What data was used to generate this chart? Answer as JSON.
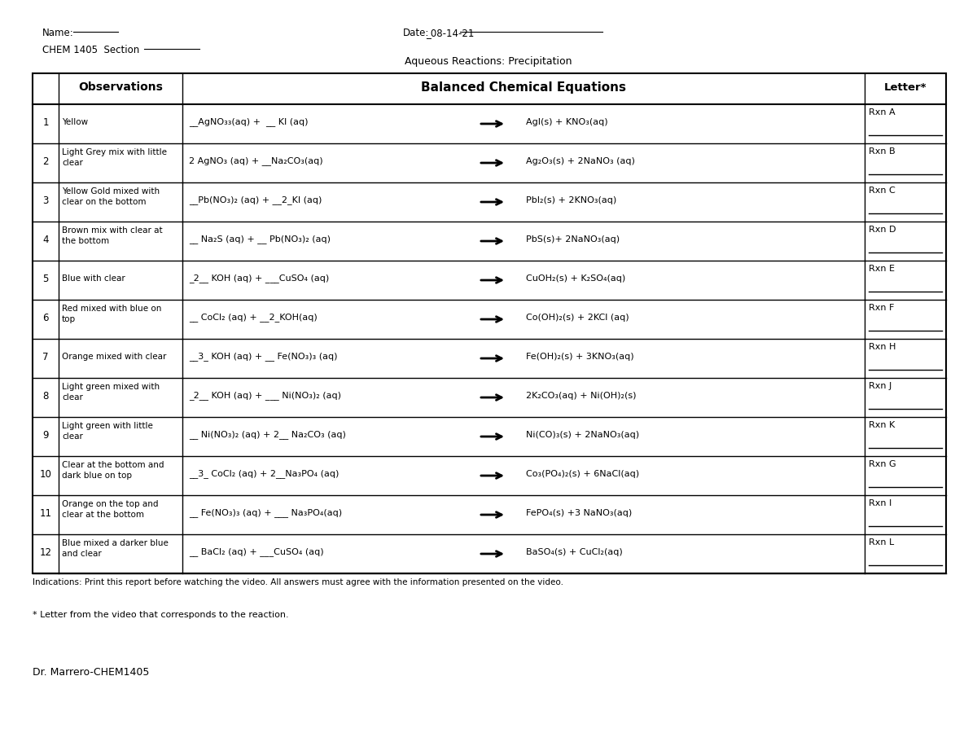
{
  "title": "Aqueous Reactions: Precipitation",
  "name_text": "Name:",
  "date_text": "Date: _08-14-21",
  "section_text": "CHEM 1405  Section",
  "header_obs": "Observations",
  "header_eq": "Balanced Chemical Equations",
  "header_letter": "Letter*",
  "obs_texts": [
    [
      "Yellow"
    ],
    [
      "Light Grey mix with little",
      "clear"
    ],
    [
      "Yellow Gold mixed with",
      "clear on the bottom"
    ],
    [
      "Brown mix with clear at",
      "the bottom"
    ],
    [
      "Blue with clear"
    ],
    [
      "Red mixed with blue on",
      "top"
    ],
    [
      "Orange mixed with clear"
    ],
    [
      "Light green mixed with",
      "clear"
    ],
    [
      "Light green with little",
      "clear"
    ],
    [
      "Clear at the bottom and",
      "dark blue on top"
    ],
    [
      "Orange on the top and",
      "clear at the bottom"
    ],
    [
      "Blue mixed a darker blue",
      "and clear"
    ]
  ],
  "eq_reactants": [
    "__AgNO₃₃(aq) +  __ KI (aq)",
    "2 AgNO₃ (aq) + __Na₂CO₃(aq)",
    "__Pb(NO₃)₂ (aq) + __2_KI (aq)",
    "__ Na₂S (aq) + __ Pb(NO₃)₂ (aq)",
    "_2__ KOH (aq) + ___CuSO₄ (aq)",
    "__ CoCl₂ (aq) + __2_KOH(aq)",
    "__3_ KOH (aq) + __ Fe(NO₃)₃ (aq)",
    "_2__ KOH (aq) + ___ Ni(NO₃)₂ (aq)",
    "__ Ni(NO₃)₂ (aq) + 2__ Na₂CO₃ (aq)",
    "__3_ CoCl₂ (aq) + 2__Na₃PO₄ (aq)",
    "__ Fe(NO₃)₃ (aq) + ___ Na₃PO₄(aq)",
    "__ BaCl₂ (aq) + ___CuSO₄ (aq)"
  ],
  "eq_products": [
    "AgI(s) + KNO₃(aq)",
    "Ag₂O₃(s) + 2NaNO₃ (aq)",
    "PbI₂(s) + 2KNO₃(aq)",
    "PbS(s)+ 2NaNO₃(aq)",
    "CuOH₂(s) + K₂SO₄(aq)",
    "Co(OH)₂(s) + 2KCl (aq)",
    "Fe(OH)₂(s) + 3KNO₃(aq)",
    "2K₂CO₃(aq) + Ni(OH)₂(s)",
    "Ni(CO)₃(s) + 2NaNO₃(aq)",
    "Co₃(PO₄)₂(s) + 6NaCl(aq)",
    "FePO₄(s) +3 NaNO₃(aq)",
    "BaSO₄(s) + CuCl₂(aq)"
  ],
  "letters": [
    "Rxn A",
    "Rxn B",
    "Rxn C",
    "Rxn D",
    "Rxn E",
    "Rxn F",
    "Rxn H",
    "Rxn J",
    "Rxn K",
    "Rxn G",
    "Rxn I",
    "Rxn L"
  ],
  "footnote1": "Indications: Print this report before watching the video. All answers must agree with the information presented on the video.",
  "footnote2": "* Letter from the video that corresponds to the reaction.",
  "footer": "Dr. Marrero-CHEM1405"
}
